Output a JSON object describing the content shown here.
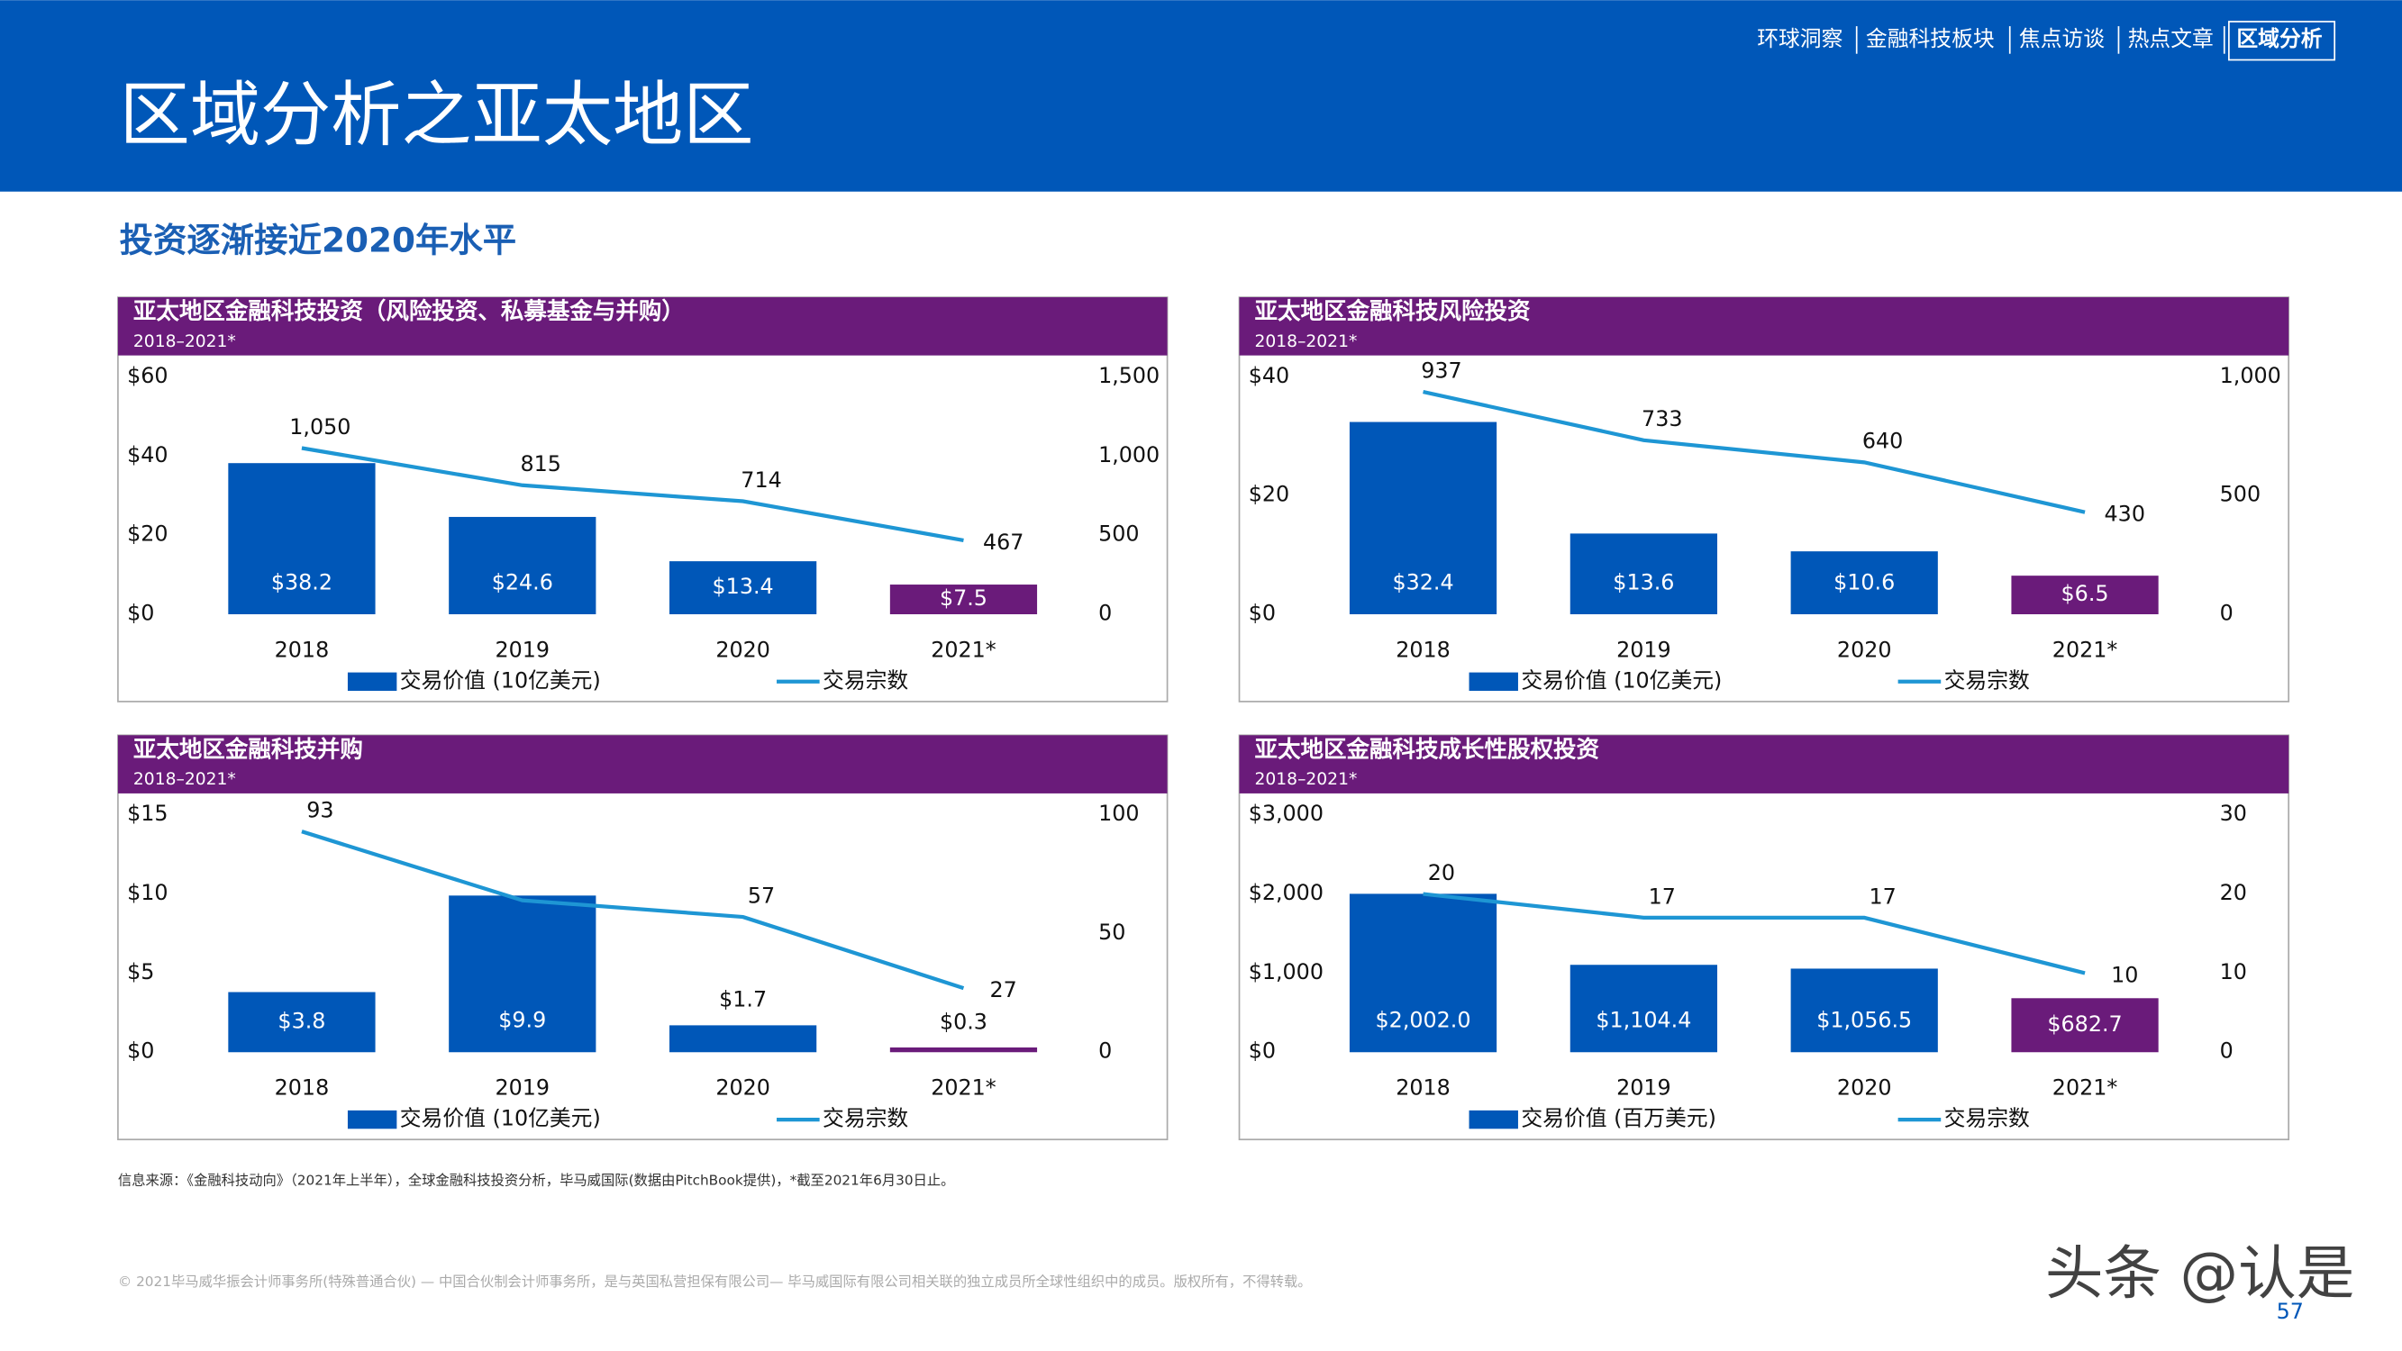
{
  "header": {
    "title": "区域分析之亚太地区",
    "nav": [
      "环球洞察",
      "金融科技板块",
      "焦点访谈",
      "热点文章",
      "区域分析"
    ]
  },
  "heading": "投资逐渐接近2020年水平",
  "chart_data": [
    {
      "type": "bar",
      "title": "亚太地区金融科技投资（风险投资、私募基金与并购）",
      "subtitle": "2018–2021*",
      "categories": [
        "2018",
        "2019",
        "2020",
        "2021*"
      ],
      "series": [
        {
          "name": "交易价值 (10亿美元)",
          "colors": [
            "#0057b8",
            "#0057b8",
            "#0057b8",
            "#6a1b7a"
          ],
          "values": [
            38.2,
            24.6,
            13.4,
            7.5
          ],
          "value_labels": [
            "$38.2",
            "$24.6",
            "$13.4",
            "$7.5"
          ]
        },
        {
          "name": "交易宗数",
          "color": "#1e96d4",
          "axis": "y2",
          "values": [
            1050,
            815,
            714,
            467
          ],
          "value_labels": [
            "1,050",
            "815",
            "714",
            "467"
          ]
        }
      ],
      "ylim": [
        0,
        60
      ],
      "yticks": [
        {
          "value": 0,
          "label": "$0"
        },
        {
          "value": 20,
          "label": "$20"
        },
        {
          "value": 40,
          "label": "$40"
        },
        {
          "value": 60,
          "label": "$60"
        }
      ],
      "y2lim": [
        0,
        1500
      ],
      "y2ticks": [
        0,
        500,
        {
          "value": 1000,
          "label": "1,000"
        },
        {
          "value": 1500,
          "label": "1,500"
        }
      ],
      "grid": false
    },
    {
      "type": "bar",
      "title": "亚太地区金融科技风险投资",
      "subtitle": "2018–2021*",
      "categories": [
        "2018",
        "2019",
        "2020",
        "2021*"
      ],
      "series": [
        {
          "name": "交易价值 (10亿美元)",
          "colors": [
            "#0057b8",
            "#0057b8",
            "#0057b8",
            "#6a1b7a"
          ],
          "values": [
            32.4,
            13.6,
            10.6,
            6.5
          ],
          "value_labels": [
            "$32.4",
            "$13.6",
            "$10.6",
            "$6.5"
          ]
        },
        {
          "name": "交易宗数",
          "color": "#1e96d4",
          "axis": "y2",
          "values": [
            937,
            733,
            640,
            430
          ],
          "value_labels": [
            "937",
            "733",
            "640",
            "430"
          ]
        }
      ],
      "ylim": [
        0,
        40
      ],
      "yticks": [
        {
          "value": 0,
          "label": "$0"
        },
        {
          "value": 20,
          "label": "$20"
        },
        {
          "value": 40,
          "label": "$40"
        }
      ],
      "y2lim": [
        0,
        1000
      ],
      "y2ticks": [
        0,
        500,
        {
          "value": 1000,
          "label": "1,000"
        }
      ],
      "grid": false
    },
    {
      "type": "bar",
      "title": "亚太地区金融科技并购",
      "subtitle": "2018–2021*",
      "categories": [
        "2018",
        "2019",
        "2020",
        "2021*"
      ],
      "series": [
        {
          "name": "交易价值 (10亿美元)",
          "colors": [
            "#0057b8",
            "#0057b8",
            "#0057b8",
            "#6a1b7a"
          ],
          "values": [
            3.8,
            9.9,
            1.7,
            0.3
          ],
          "value_labels": [
            "$3.8",
            "$9.9",
            "$1.7",
            "$0.3"
          ]
        },
        {
          "name": "交易宗数",
          "color": "#1e96d4",
          "axis": "y2",
          "values": [
            93,
            64,
            57,
            27
          ],
          "value_labels": [
            "93",
            null,
            "57",
            "27"
          ]
        }
      ],
      "ylim": [
        0,
        15
      ],
      "yticks": [
        {
          "value": 0,
          "label": "$0"
        },
        {
          "value": 5,
          "label": "$5"
        },
        {
          "value": 10,
          "label": "$10"
        },
        {
          "value": 15,
          "label": "$15"
        }
      ],
      "y2lim": [
        0,
        100
      ],
      "y2ticks": [
        0,
        50,
        100
      ],
      "grid": false
    },
    {
      "type": "bar",
      "title": "亚太地区金融科技成长性股权投资",
      "subtitle": "2018–2021*",
      "categories": [
        "2018",
        "2019",
        "2020",
        "2021*"
      ],
      "series": [
        {
          "name": "交易价值 (百万美元)",
          "colors": [
            "#0057b8",
            "#0057b8",
            "#0057b8",
            "#6a1b7a"
          ],
          "values": [
            2002.0,
            1104.4,
            1056.5,
            682.7
          ],
          "value_labels": [
            "$2,002.0",
            "$1,104.4",
            "$1,056.5",
            "$682.7"
          ]
        },
        {
          "name": "交易宗数",
          "color": "#1e96d4",
          "axis": "y2",
          "values": [
            20,
            17,
            17,
            10
          ],
          "value_labels": [
            "20",
            "17",
            "17",
            "10"
          ]
        }
      ],
      "ylim": [
        0,
        3000
      ],
      "yticks": [
        {
          "value": 0,
          "label": "$0"
        },
        {
          "value": 1000,
          "label": "$1,000"
        },
        {
          "value": 2000,
          "label": "$2,000"
        },
        {
          "value": 3000,
          "label": "$3,000"
        }
      ],
      "y2lim": [
        0,
        30
      ],
      "y2ticks": [
        0,
        10,
        20,
        30
      ],
      "grid": false
    }
  ],
  "source": "信息来源：《金融科技动向》（2021年上半年），全球金融科技投资分析，毕马威国际(数据由PitchBook提供)，*截至2021年6月30日止。",
  "footer": "© 2021毕马威华振会计师事务所(特殊普通合伙) — 中国合伙制会计师事务所，是与英国私营担保有限公司— 毕马威国际有限公司相关联的独立成员所全球性组织中的成员。版权所有，不得转载。",
  "page_number": "57",
  "watermark": "头条 @认是"
}
